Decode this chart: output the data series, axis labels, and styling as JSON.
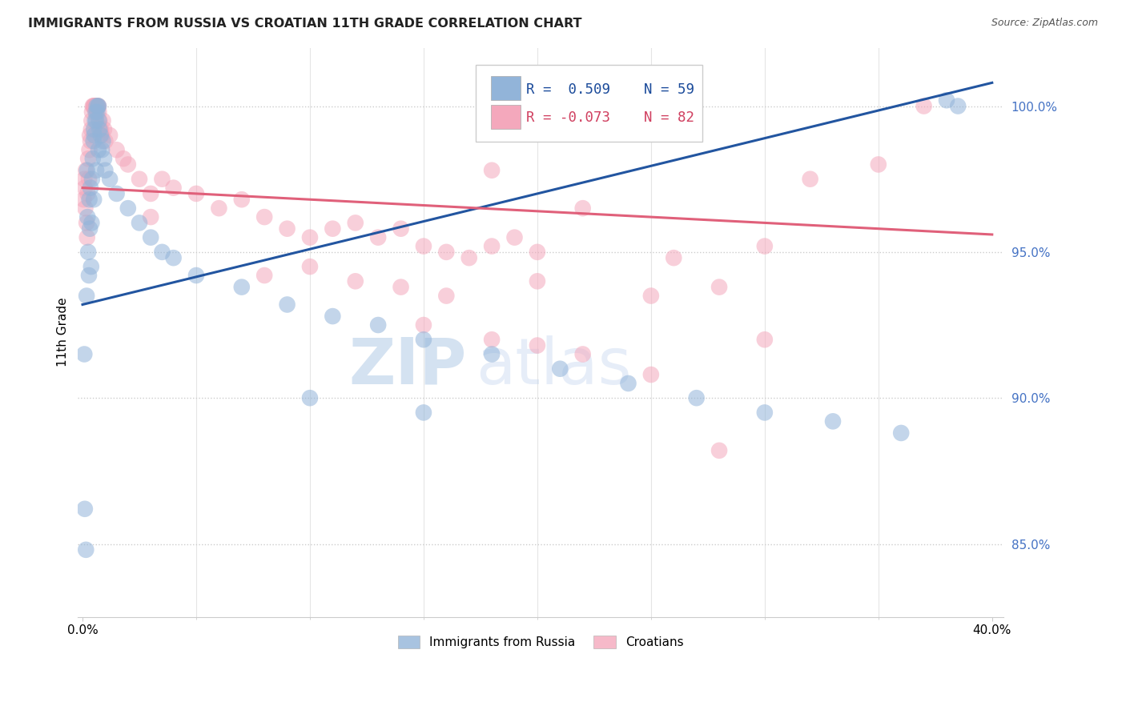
{
  "title": "IMMIGRANTS FROM RUSSIA VS CROATIAN 11TH GRADE CORRELATION CHART",
  "source": "Source: ZipAtlas.com",
  "ylabel": "11th Grade",
  "y_ticks": [
    85.0,
    90.0,
    95.0,
    100.0
  ],
  "y_tick_labels": [
    "85.0%",
    "90.0%",
    "95.0%",
    "100.0%"
  ],
  "blue_color": "#92b4d9",
  "pink_color": "#f4a8bc",
  "blue_line_color": "#2255a0",
  "pink_line_color": "#e0607a",
  "blue_scatter": [
    [
      0.0008,
      91.5
    ],
    [
      0.001,
      86.2
    ],
    [
      0.0015,
      84.8
    ],
    [
      0.0018,
      93.5
    ],
    [
      0.002,
      97.8
    ],
    [
      0.0022,
      96.2
    ],
    [
      0.0025,
      95.0
    ],
    [
      0.0028,
      94.2
    ],
    [
      0.003,
      96.8
    ],
    [
      0.0032,
      95.8
    ],
    [
      0.0035,
      97.2
    ],
    [
      0.0038,
      94.5
    ],
    [
      0.004,
      96.0
    ],
    [
      0.0042,
      97.5
    ],
    [
      0.0045,
      98.2
    ],
    [
      0.0048,
      98.8
    ],
    [
      0.005,
      99.2
    ],
    [
      0.0052,
      99.0
    ],
    [
      0.0055,
      99.5
    ],
    [
      0.0058,
      99.8
    ],
    [
      0.006,
      99.5
    ],
    [
      0.0062,
      100.0
    ],
    [
      0.0065,
      99.8
    ],
    [
      0.0068,
      100.0
    ],
    [
      0.007,
      100.0
    ],
    [
      0.0072,
      99.5
    ],
    [
      0.0075,
      99.2
    ],
    [
      0.008,
      99.0
    ],
    [
      0.0085,
      98.5
    ],
    [
      0.009,
      98.8
    ],
    [
      0.0095,
      98.2
    ],
    [
      0.01,
      97.8
    ],
    [
      0.012,
      97.5
    ],
    [
      0.015,
      97.0
    ],
    [
      0.02,
      96.5
    ],
    [
      0.025,
      96.0
    ],
    [
      0.03,
      95.5
    ],
    [
      0.035,
      95.0
    ],
    [
      0.04,
      94.8
    ],
    [
      0.05,
      94.2
    ],
    [
      0.07,
      93.8
    ],
    [
      0.09,
      93.2
    ],
    [
      0.11,
      92.8
    ],
    [
      0.13,
      92.5
    ],
    [
      0.15,
      92.0
    ],
    [
      0.18,
      91.5
    ],
    [
      0.21,
      91.0
    ],
    [
      0.24,
      90.5
    ],
    [
      0.27,
      90.0
    ],
    [
      0.3,
      89.5
    ],
    [
      0.33,
      89.2
    ],
    [
      0.36,
      88.8
    ],
    [
      0.38,
      100.2
    ],
    [
      0.385,
      100.0
    ],
    [
      0.25,
      100.2
    ],
    [
      0.1,
      90.0
    ],
    [
      0.15,
      89.5
    ],
    [
      0.005,
      96.8
    ],
    [
      0.006,
      97.8
    ],
    [
      0.007,
      98.5
    ]
  ],
  "pink_scatter": [
    [
      0.0005,
      96.8
    ],
    [
      0.0008,
      97.5
    ],
    [
      0.001,
      97.2
    ],
    [
      0.0012,
      96.5
    ],
    [
      0.0015,
      97.8
    ],
    [
      0.0018,
      96.0
    ],
    [
      0.002,
      95.5
    ],
    [
      0.0022,
      97.0
    ],
    [
      0.0025,
      98.2
    ],
    [
      0.0028,
      97.5
    ],
    [
      0.003,
      98.5
    ],
    [
      0.0032,
      99.0
    ],
    [
      0.0035,
      98.8
    ],
    [
      0.0038,
      99.2
    ],
    [
      0.004,
      99.5
    ],
    [
      0.0042,
      99.8
    ],
    [
      0.0045,
      100.0
    ],
    [
      0.0048,
      100.0
    ],
    [
      0.005,
      100.0
    ],
    [
      0.0052,
      100.0
    ],
    [
      0.0055,
      100.0
    ],
    [
      0.0058,
      100.0
    ],
    [
      0.006,
      99.8
    ],
    [
      0.0062,
      100.0
    ],
    [
      0.0065,
      100.0
    ],
    [
      0.0068,
      100.0
    ],
    [
      0.007,
      100.0
    ],
    [
      0.0072,
      99.8
    ],
    [
      0.0075,
      99.5
    ],
    [
      0.008,
      99.2
    ],
    [
      0.0085,
      99.0
    ],
    [
      0.009,
      99.5
    ],
    [
      0.0095,
      99.2
    ],
    [
      0.01,
      98.8
    ],
    [
      0.012,
      99.0
    ],
    [
      0.015,
      98.5
    ],
    [
      0.018,
      98.2
    ],
    [
      0.02,
      98.0
    ],
    [
      0.025,
      97.5
    ],
    [
      0.03,
      97.0
    ],
    [
      0.035,
      97.5
    ],
    [
      0.04,
      97.2
    ],
    [
      0.05,
      97.0
    ],
    [
      0.06,
      96.5
    ],
    [
      0.07,
      96.8
    ],
    [
      0.08,
      96.2
    ],
    [
      0.09,
      95.8
    ],
    [
      0.1,
      95.5
    ],
    [
      0.11,
      95.8
    ],
    [
      0.12,
      96.0
    ],
    [
      0.13,
      95.5
    ],
    [
      0.14,
      95.8
    ],
    [
      0.15,
      95.2
    ],
    [
      0.16,
      95.0
    ],
    [
      0.17,
      94.8
    ],
    [
      0.18,
      95.2
    ],
    [
      0.19,
      95.5
    ],
    [
      0.2,
      95.0
    ],
    [
      0.08,
      94.2
    ],
    [
      0.1,
      94.5
    ],
    [
      0.12,
      94.0
    ],
    [
      0.14,
      93.8
    ],
    [
      0.16,
      93.5
    ],
    [
      0.2,
      94.0
    ],
    [
      0.25,
      93.5
    ],
    [
      0.28,
      93.8
    ],
    [
      0.15,
      92.5
    ],
    [
      0.18,
      92.0
    ],
    [
      0.2,
      91.8
    ],
    [
      0.22,
      91.5
    ],
    [
      0.25,
      90.8
    ],
    [
      0.3,
      92.0
    ],
    [
      0.28,
      88.2
    ],
    [
      0.32,
      97.5
    ],
    [
      0.37,
      100.0
    ],
    [
      0.35,
      98.0
    ],
    [
      0.18,
      97.8
    ],
    [
      0.22,
      96.5
    ],
    [
      0.26,
      94.8
    ],
    [
      0.3,
      95.2
    ],
    [
      0.03,
      96.2
    ]
  ],
  "blue_line_x": [
    0.0,
    0.4
  ],
  "blue_line_y": [
    93.2,
    100.8
  ],
  "pink_line_x": [
    0.0,
    0.4
  ],
  "pink_line_y": [
    97.2,
    95.6
  ],
  "xmin": -0.002,
  "xmax": 0.405,
  "ymin": 82.5,
  "ymax": 102.0,
  "watermark_zip": "ZIP",
  "watermark_atlas": "atlas",
  "background_color": "#ffffff",
  "grid_color": "#cccccc"
}
